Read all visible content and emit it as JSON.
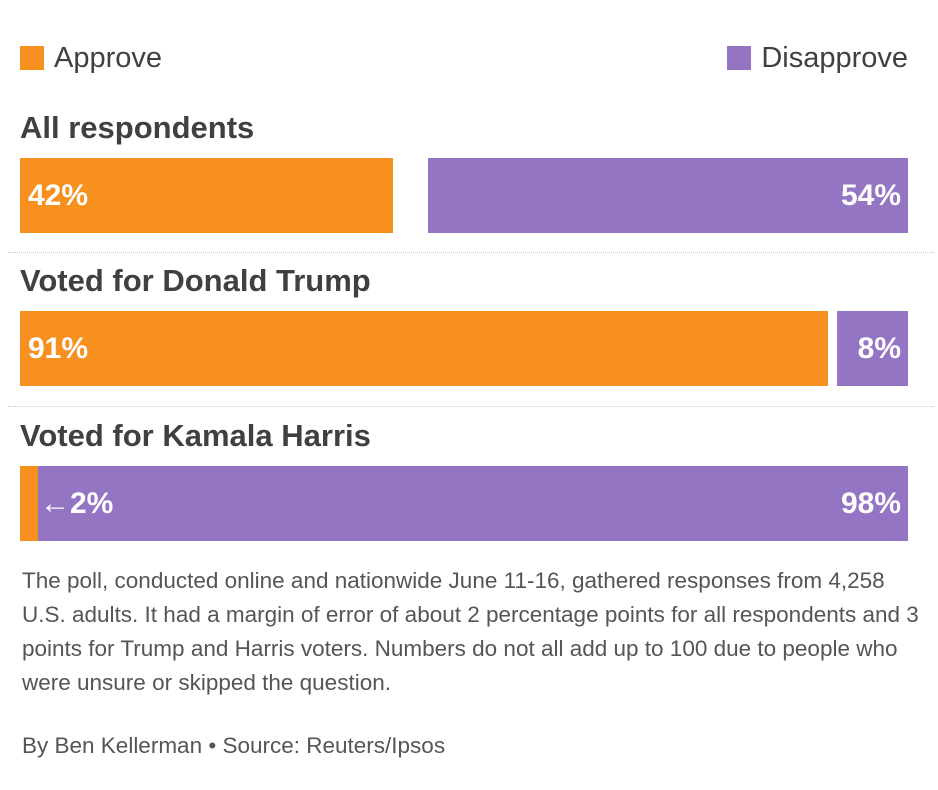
{
  "legend": {
    "approve": "Approve",
    "disapprove": "Disapprove"
  },
  "colors": {
    "approve": "#f7901e",
    "disapprove": "#9475c4",
    "text": "#404040"
  },
  "chart_data": {
    "type": "bar",
    "orientation": "horizontal-stacked",
    "xlim": [
      0,
      100
    ],
    "categories": [
      "All respondents",
      "Voted for Donald Trump",
      "Voted for Kamala Harris"
    ],
    "series": [
      {
        "name": "Approve",
        "values": [
          42,
          91,
          2
        ]
      },
      {
        "name": "Disapprove",
        "values": [
          54,
          8,
          98
        ]
      }
    ],
    "labels": {
      "approve": [
        "42%",
        "91%",
        "←2%"
      ],
      "disapprove": [
        "54%",
        "8%",
        "98%"
      ]
    }
  },
  "footer": {
    "note": "The poll, conducted online and nationwide June 11-16, gathered responses from 4,258 U.S. adults. It had a margin of error of about 2 percentage points for all respondents and 3 points for Trump and Harris voters. Numbers do not all add up to 100 due to people who were unsure or skipped the question.",
    "credit": "By Ben Kellerman • Source: Reuters/Ipsos"
  }
}
